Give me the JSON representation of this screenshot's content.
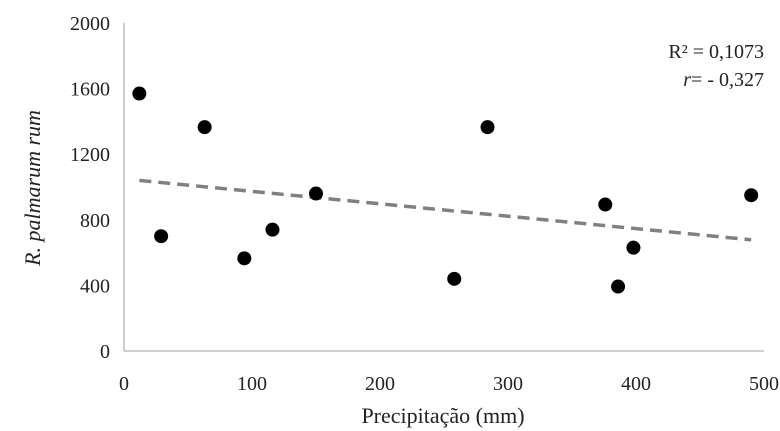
{
  "chart_data": {
    "type": "scatter",
    "title": "",
    "xlabel": "Precipitação (mm)",
    "ylabel": "R. palmarum rum",
    "xlim": [
      0,
      500
    ],
    "ylim": [
      0,
      2000
    ],
    "x_ticks": [
      0,
      100,
      200,
      300,
      400,
      500
    ],
    "y_ticks": [
      0,
      400,
      800,
      1200,
      1600,
      2000
    ],
    "grid": false,
    "points": [
      {
        "x": 12,
        "y": 1570
      },
      {
        "x": 29,
        "y": 700
      },
      {
        "x": 63,
        "y": 1365
      },
      {
        "x": 94,
        "y": 565
      },
      {
        "x": 116,
        "y": 740
      },
      {
        "x": 150,
        "y": 960
      },
      {
        "x": 258,
        "y": 440
      },
      {
        "x": 284,
        "y": 1365
      },
      {
        "x": 376,
        "y": 893
      },
      {
        "x": 386,
        "y": 393
      },
      {
        "x": 398,
        "y": 630
      },
      {
        "x": 490,
        "y": 950
      }
    ],
    "trendline": {
      "x": [
        12,
        490
      ],
      "y": [
        1040,
        678
      ]
    },
    "annotations": {
      "r2": "R² = 0,1073",
      "r_symbol": "r",
      "r_value": "= - 0,327"
    },
    "colors": {
      "points": "#000000",
      "trendline": "#808080",
      "axis": "#bfbfbf"
    }
  }
}
